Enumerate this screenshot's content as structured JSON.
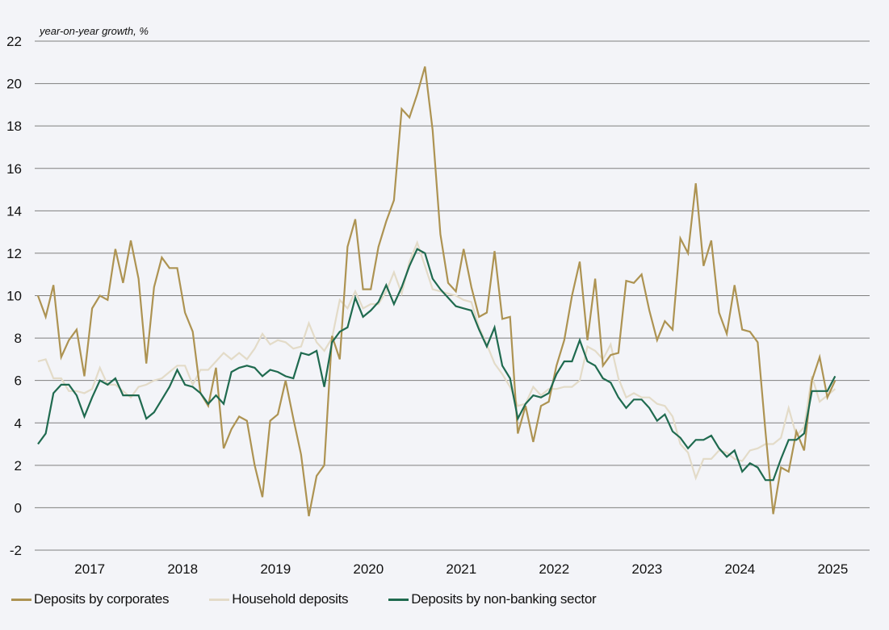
{
  "chart_data": {
    "type": "line",
    "title": "",
    "ylabel": "year-on-year growth, %",
    "xlabel": "",
    "ylim": [
      -2,
      22
    ],
    "yticks": [
      -2,
      0,
      2,
      4,
      6,
      8,
      10,
      12,
      14,
      16,
      18,
      20,
      22
    ],
    "ytick_labels": [
      "-2",
      "0",
      "2",
      "4",
      "6",
      "8",
      "10",
      "12",
      "14",
      "16",
      "18",
      "20",
      "22"
    ],
    "x_start": "2016-07",
    "x_frequency": "monthly",
    "xtick_labels": [
      "2017",
      "2018",
      "2019",
      "2020",
      "2021",
      "2022",
      "2023",
      "2024",
      "2025"
    ],
    "grid": "horizontal",
    "legend_position": "bottom",
    "series": [
      {
        "name": "Deposits by corporates",
        "color": "#ad9352",
        "values": [
          10.0,
          9.0,
          10.5,
          7.1,
          7.9,
          8.4,
          6.2,
          9.4,
          10.0,
          9.8,
          12.2,
          10.6,
          12.6,
          10.8,
          6.8,
          10.4,
          11.8,
          11.3,
          11.3,
          9.2,
          8.3,
          5.4,
          4.8,
          6.6,
          2.8,
          3.7,
          4.3,
          4.1,
          2.0,
          0.5,
          4.1,
          4.4,
          6.0,
          4.2,
          2.5,
          -0.4,
          1.5,
          2.0,
          8.1,
          7.0,
          12.3,
          13.6,
          10.3,
          10.3,
          12.3,
          13.5,
          14.5,
          18.8,
          18.4,
          19.5,
          20.8,
          17.8,
          12.9,
          10.6,
          10.2,
          12.2,
          10.4,
          9.0,
          9.2,
          12.1,
          8.9,
          9.0,
          3.5,
          4.8,
          3.1,
          4.8,
          5.0,
          6.7,
          7.9,
          10.0,
          11.6,
          7.9,
          10.8,
          6.7,
          7.2,
          7.3,
          10.7,
          10.6,
          11.0,
          9.3,
          7.9,
          8.8,
          8.4,
          12.7,
          12.0,
          15.3,
          11.4,
          12.6,
          9.2,
          8.2,
          10.5,
          8.4,
          8.3,
          7.8,
          3.6,
          -0.3,
          1.9,
          1.7,
          3.6,
          2.7,
          6.0,
          7.1,
          5.2,
          6.0
        ]
      },
      {
        "name": "Household deposits",
        "color": "#e3dbc8",
        "values": [
          6.9,
          7.0,
          6.1,
          6.1,
          5.5,
          5.5,
          5.4,
          5.6,
          6.6,
          5.8,
          5.8,
          5.5,
          5.2,
          5.7,
          5.8,
          6.0,
          6.1,
          6.4,
          6.7,
          6.7,
          5.8,
          6.5,
          6.5,
          6.9,
          7.3,
          7.0,
          7.3,
          7.0,
          7.5,
          8.2,
          7.7,
          7.9,
          7.8,
          7.5,
          7.6,
          8.7,
          7.8,
          7.4,
          8.0,
          9.8,
          9.4,
          10.2,
          9.4,
          9.6,
          9.6,
          10.2,
          11.1,
          10.1,
          11.6,
          12.5,
          11.4,
          10.3,
          10.2,
          10.1,
          10.0,
          9.8,
          9.7,
          8.5,
          7.7,
          6.8,
          6.3,
          5.7,
          4.8,
          4.9,
          5.7,
          5.3,
          5.6,
          5.6,
          5.7,
          5.7,
          6.0,
          7.6,
          7.4,
          7.0,
          7.7,
          6.1,
          5.2,
          5.4,
          5.2,
          5.2,
          4.9,
          4.8,
          4.3,
          3.0,
          2.6,
          1.4,
          2.3,
          2.3,
          2.7,
          2.6,
          2.3,
          2.2,
          2.7,
          2.8,
          3.0,
          3.0,
          3.3,
          4.7,
          3.4,
          3.8,
          6.2,
          5.0,
          5.3,
          5.6
        ]
      },
      {
        "name": "Deposits by non-banking sector",
        "color": "#1f6a4f",
        "values": [
          3.0,
          3.5,
          5.4,
          5.8,
          5.8,
          5.3,
          4.3,
          5.2,
          6.0,
          5.8,
          6.1,
          5.3,
          5.3,
          5.3,
          4.2,
          4.5,
          5.1,
          5.7,
          6.5,
          5.8,
          5.7,
          5.4,
          4.9,
          5.3,
          4.9,
          6.4,
          6.6,
          6.7,
          6.6,
          6.2,
          6.5,
          6.4,
          6.2,
          6.1,
          7.3,
          7.2,
          7.4,
          5.7,
          7.8,
          8.3,
          8.5,
          9.9,
          9.0,
          9.3,
          9.7,
          10.5,
          9.6,
          10.4,
          11.4,
          12.2,
          12.0,
          10.8,
          10.3,
          9.9,
          9.5,
          9.4,
          9.3,
          8.4,
          7.6,
          8.5,
          6.7,
          6.1,
          4.2,
          4.9,
          5.3,
          5.2,
          5.4,
          6.3,
          6.9,
          6.9,
          7.9,
          6.9,
          6.7,
          6.1,
          5.9,
          5.2,
          4.7,
          5.1,
          5.1,
          4.7,
          4.1,
          4.4,
          3.6,
          3.3,
          2.8,
          3.2,
          3.2,
          3.4,
          2.8,
          2.4,
          2.7,
          1.7,
          2.1,
          1.9,
          1.3,
          1.3,
          2.3,
          3.2,
          3.2,
          3.5,
          5.5,
          5.5,
          5.5,
          6.2
        ]
      }
    ]
  },
  "legend": {
    "items": [
      {
        "label": "Deposits by corporates",
        "color": "#ad9352"
      },
      {
        "label": "Household deposits",
        "color": "#e3dbc8"
      },
      {
        "label": "Deposits by non-banking sector",
        "color": "#1f6a4f"
      }
    ]
  },
  "colors": {
    "background": "#f3f4f8",
    "grid": "#7f7f7f"
  }
}
